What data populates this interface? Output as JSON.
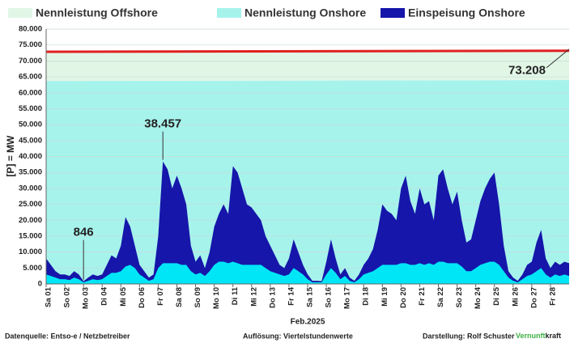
{
  "chart_data": {
    "type": "area",
    "y_label": "[P] = MW",
    "x_label": "Feb.2025",
    "xlim": [
      0,
      28
    ],
    "ylim": [
      0,
      80000
    ],
    "xticks": [
      {
        "value": 0,
        "label": "Sa 01"
      },
      {
        "value": 1,
        "label": "So 02"
      },
      {
        "value": 2,
        "label": "Mo 03"
      },
      {
        "value": 3,
        "label": "Di 04"
      },
      {
        "value": 4,
        "label": "Mi 05"
      },
      {
        "value": 5,
        "label": "Do 06"
      },
      {
        "value": 6,
        "label": "Fr 07"
      },
      {
        "value": 7,
        "label": "Sa 08"
      },
      {
        "value": 8,
        "label": "So 09"
      },
      {
        "value": 9,
        "label": "Mo 10"
      },
      {
        "value": 10,
        "label": "Di 11"
      },
      {
        "value": 11,
        "label": "Mi 12"
      },
      {
        "value": 12,
        "label": "Do 13"
      },
      {
        "value": 13,
        "label": "Fr 14"
      },
      {
        "value": 14,
        "label": "Sa 15"
      },
      {
        "value": 15,
        "label": "So 16"
      },
      {
        "value": 16,
        "label": "Mo 17"
      },
      {
        "value": 17,
        "label": "Di 18"
      },
      {
        "value": 18,
        "label": "Mi 19"
      },
      {
        "value": 19,
        "label": "Do 20"
      },
      {
        "value": 20,
        "label": "Fr 21"
      },
      {
        "value": 21,
        "label": "Sa 22"
      },
      {
        "value": 22,
        "label": "So 23"
      },
      {
        "value": 23,
        "label": "Mo 24"
      },
      {
        "value": 24,
        "label": "Di 25"
      },
      {
        "value": 25,
        "label": "Mi 26"
      },
      {
        "value": 26,
        "label": "Do 27"
      },
      {
        "value": 27,
        "label": "Fr 28"
      }
    ],
    "yticks": [
      0,
      {
        "value": 5000,
        "label": "5.000"
      },
      {
        "value": 10000,
        "label": "10.000"
      },
      {
        "value": 15000,
        "label": "15.000"
      },
      {
        "value": 20000,
        "label": "20.000"
      },
      {
        "value": 25000,
        "label": "25.000"
      },
      {
        "value": 30000,
        "label": "30.000"
      },
      {
        "value": 35000,
        "label": "35.000"
      },
      {
        "value": 40000,
        "label": "40.000"
      },
      {
        "value": 45000,
        "label": "45.000"
      },
      {
        "value": 50000,
        "label": "50.000"
      },
      {
        "value": 55000,
        "label": "55.000"
      },
      {
        "value": 60000,
        "label": "60.000"
      },
      {
        "value": 65000,
        "label": "65.000"
      },
      {
        "value": 70000,
        "label": "70.000"
      },
      {
        "value": 75000,
        "label": "75.000"
      },
      {
        "value": 80000,
        "label": "80.000"
      }
    ],
    "grid": true,
    "x": [
      0,
      0.25,
      0.5,
      0.75,
      1,
      1.25,
      1.5,
      1.75,
      2,
      2.25,
      2.5,
      2.75,
      3,
      3.25,
      3.5,
      3.75,
      4,
      4.25,
      4.5,
      4.75,
      5,
      5.25,
      5.5,
      5.75,
      6,
      6.25,
      6.5,
      6.75,
      7,
      7.25,
      7.5,
      7.75,
      8,
      8.25,
      8.5,
      8.75,
      9,
      9.25,
      9.5,
      9.75,
      10,
      10.25,
      10.5,
      10.75,
      11,
      11.25,
      11.5,
      11.75,
      12,
      12.25,
      12.5,
      12.75,
      13,
      13.25,
      13.5,
      13.75,
      14,
      14.25,
      14.5,
      14.75,
      15,
      15.25,
      15.5,
      15.75,
      16,
      16.25,
      16.5,
      16.75,
      17,
      17.25,
      17.5,
      17.75,
      18,
      18.25,
      18.5,
      18.75,
      19,
      19.25,
      19.5,
      19.75,
      20,
      20.25,
      20.5,
      20.75,
      21,
      21.25,
      21.5,
      21.75,
      22,
      22.25,
      22.5,
      22.75,
      23,
      23.25,
      23.5,
      23.75,
      24,
      24.25,
      24.5,
      24.75,
      25,
      25.25,
      25.5,
      25.75,
      26,
      26.25,
      26.5,
      26.75,
      27,
      27.25,
      27.5,
      27.75,
      28
    ],
    "series": [
      {
        "name": "Nennleistung Offshore",
        "color": "#e2f6e6",
        "line_color": "#e02020",
        "stacked_on": 1,
        "x": [
          0,
          28
        ],
        "values": [
          9200,
          9208
        ]
      },
      {
        "name": "Nennleistung Onshore",
        "color": "#a6f3ec",
        "x": [
          0,
          28
        ],
        "values": [
          63700,
          64000
        ]
      },
      {
        "name": "Einspeisung Onshore",
        "color": "#1616aa",
        "values": [
          8000,
          6000,
          4000,
          3000,
          3000,
          2500,
          4000,
          3000,
          846,
          2000,
          3000,
          2500,
          3000,
          6000,
          9000,
          8000,
          12000,
          21000,
          18000,
          12000,
          6000,
          4000,
          2000,
          3000,
          15000,
          38457,
          36000,
          30000,
          34000,
          30000,
          25000,
          12000,
          7000,
          9000,
          5000,
          10000,
          18000,
          22000,
          25000,
          22000,
          37000,
          35000,
          30000,
          25000,
          24000,
          22000,
          20000,
          15000,
          12000,
          9000,
          6000,
          5000,
          8000,
          14000,
          10000,
          6000,
          3000,
          1000,
          1000,
          900,
          7000,
          14000,
          8000,
          3000,
          5000,
          2000,
          1000,
          3000,
          6000,
          8000,
          11000,
          17000,
          25000,
          23000,
          22000,
          20000,
          30000,
          34000,
          26000,
          22000,
          30000,
          25000,
          26000,
          20000,
          34000,
          36000,
          30000,
          25000,
          29000,
          20000,
          13000,
          14000,
          20000,
          26000,
          30000,
          33000,
          35000,
          25000,
          12000,
          4000,
          2000,
          1000,
          3000,
          6000,
          7000,
          13000,
          17000,
          8000,
          5000,
          7000,
          6000,
          7000,
          6500
        ]
      },
      {
        "color": "#00e6f6",
        "values": [
          3000,
          2500,
          2000,
          1500,
          1500,
          1200,
          2000,
          1500,
          500,
          1000,
          1500,
          1200,
          1500,
          2500,
          3500,
          3500,
          4000,
          5500,
          6000,
          5000,
          3000,
          2000,
          1000,
          1500,
          5000,
          6500,
          6500,
          6500,
          6500,
          6000,
          6000,
          4000,
          3000,
          3500,
          2500,
          4000,
          6000,
          7000,
          7000,
          6500,
          7000,
          6500,
          6000,
          6000,
          6000,
          6000,
          6000,
          5000,
          4000,
          3500,
          3000,
          2500,
          3000,
          5000,
          4000,
          3000,
          1500,
          500,
          500,
          500,
          3000,
          5000,
          3500,
          1500,
          2500,
          1000,
          500,
          1500,
          3000,
          3500,
          4000,
          5000,
          6000,
          6000,
          6000,
          6000,
          6500,
          6500,
          6000,
          6000,
          6500,
          6000,
          6500,
          6000,
          7000,
          7000,
          6500,
          6500,
          6500,
          5500,
          4000,
          4000,
          5000,
          6000,
          6500,
          7000,
          7000,
          6000,
          4000,
          2000,
          1000,
          500,
          1500,
          2500,
          3000,
          4000,
          5000,
          3000,
          2000,
          3000,
          2500,
          3000,
          2500
        ]
      }
    ],
    "annotations": [
      {
        "label": "38.457",
        "value": 38457,
        "x": 6.25
      },
      {
        "label": "846",
        "value": 846,
        "x": 2
      },
      {
        "label": "73.208",
        "value": 73208,
        "x": 28
      }
    ]
  },
  "footer": {
    "source": "Datenquelle:  Entso-e  / Netzbetreiber",
    "resolution": "Auflösung: Viertelstundenwerte",
    "author": "Darstellung:  Rolf Schuster",
    "brand_green": "Vernunft",
    "brand": "kraft"
  }
}
